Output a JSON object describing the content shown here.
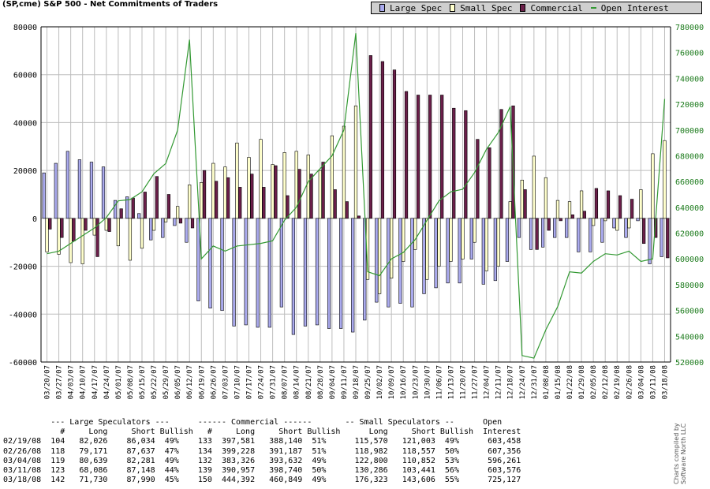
{
  "title": "(SP,cme) S&P 500 - Net Commitments of Traders",
  "legend": [
    {
      "label": "Large Spec",
      "color": "#aaaaee"
    },
    {
      "label": "Small Spec",
      "color": "#ffffcc"
    },
    {
      "label": "Commercial",
      "color": "#6b1f4a"
    },
    {
      "label": "Open Interest",
      "color": "#339933"
    }
  ],
  "chart_data": {
    "type": "bar",
    "title": "(SP,cme) S&P 500 - Net Commitments of Traders",
    "ylim_left": [
      -60000,
      80000
    ],
    "left_ticks": [
      "80000",
      "60000",
      "40000",
      "20000",
      "0",
      "-20000",
      "-40000",
      "-60000"
    ],
    "ylim_right": [
      520000,
      780000
    ],
    "right_ticks": [
      "780000",
      "760000",
      "740000",
      "720000",
      "700000",
      "680000",
      "660000",
      "640000",
      "620000",
      "600000",
      "580000",
      "560000",
      "540000",
      "520000"
    ],
    "x_ticks": [
      "03/20/07",
      "03/27/07",
      "04/03/07",
      "04/10/07",
      "04/17/07",
      "04/24/07",
      "05/01/07",
      "05/08/07",
      "05/15/07",
      "05/22/07",
      "05/29/07",
      "06/05/07",
      "06/12/07",
      "06/19/07",
      "06/26/07",
      "07/03/07",
      "07/10/07",
      "07/17/07",
      "07/24/07",
      "07/31/07",
      "08/07/07",
      "08/14/07",
      "08/21/07",
      "08/28/07",
      "09/04/07",
      "09/11/07",
      "09/18/07",
      "09/25/07",
      "10/02/07",
      "10/09/07",
      "10/16/07",
      "10/23/07",
      "10/30/07",
      "11/06/07",
      "11/13/07",
      "11/20/07",
      "11/27/07",
      "12/04/07",
      "12/11/07",
      "12/18/07",
      "12/24/07",
      "12/31/07",
      "01/08/08",
      "01/15/08",
      "01/22/08",
      "01/29/08",
      "02/05/08",
      "02/12/08",
      "02/19/08",
      "02/26/08",
      "03/04/08",
      "03/11/08",
      "03/18/08"
    ],
    "series": [
      {
        "name": "Large Spec",
        "color": "#aaaaee",
        "values": [
          19000,
          23000,
          28000,
          24500,
          23500,
          21500,
          7500,
          9000,
          2000,
          -9000,
          -8000,
          -3000,
          -10000,
          -34500,
          -37500,
          -38500,
          -45000,
          -44500,
          -45500,
          -45500,
          -37000,
          -48500,
          -45000,
          -44500,
          -46000,
          -46000,
          -47500,
          -42500,
          -35000,
          -37000,
          -35500,
          -37000,
          -31500,
          -29000,
          -27000,
          -27000,
          -17000,
          -27500,
          -26000,
          -18000,
          -8000,
          -13000,
          -12000,
          -8000,
          -8000,
          -14000,
          -14000,
          -10000,
          -4000,
          -8000,
          -1000,
          -19000,
          -16000
        ]
      },
      {
        "name": "Small Spec",
        "color": "#ffffcc",
        "values": [
          -14000,
          -15000,
          -18500,
          -19000,
          -7000,
          -5000,
          -11500,
          -17500,
          -12500,
          -5000,
          -1500,
          5000,
          14000,
          15000,
          23000,
          21500,
          31500,
          25500,
          33000,
          22500,
          27500,
          28000,
          26500,
          20000,
          34500,
          38500,
          47000,
          -25500,
          -31500,
          -25000,
          -18000,
          -13000,
          -25500,
          -20000,
          -18000,
          -17000,
          -10000,
          -22000,
          -20000,
          7000,
          16000,
          26000,
          17000,
          7500,
          7000,
          11500,
          -3000,
          -1000,
          -5000,
          -4000,
          12000,
          27000,
          32500
        ]
      },
      {
        "name": "Commercial",
        "color": "#6b1f4a",
        "values": [
          -4500,
          -8000,
          -9500,
          -5000,
          -16000,
          -5500,
          4000,
          8500,
          11000,
          17500,
          10000,
          -2000,
          -4000,
          20000,
          15500,
          17000,
          13000,
          18500,
          13000,
          22000,
          9500,
          20500,
          18500,
          23500,
          12000,
          7000,
          1000,
          68000,
          65500,
          62000,
          53000,
          51500,
          51500,
          51500,
          46000,
          45000,
          33000,
          29500,
          45500,
          47000,
          12000,
          -13000,
          -5000,
          -1000,
          1500,
          3000,
          12500,
          11500,
          9500,
          8000,
          -10500,
          -8000,
          -16500
        ]
      },
      {
        "name": "Open Interest",
        "color": "#339933",
        "values": [
          604000,
          606000,
          612000,
          618000,
          624000,
          632000,
          645000,
          646000,
          652000,
          666000,
          674000,
          700000,
          770000,
          600000,
          610000,
          606000,
          610000,
          611000,
          612000,
          614000,
          630000,
          640000,
          660000,
          670000,
          680000,
          700000,
          775000,
          590000,
          587000,
          600000,
          605000,
          615000,
          630000,
          645000,
          652000,
          654000,
          667000,
          685000,
          698000,
          718000,
          525000,
          523000,
          545000,
          563000,
          590000,
          589000,
          598000,
          604000,
          603000,
          606000,
          598000,
          600000,
          724000
        ]
      }
    ]
  },
  "table": {
    "header1": "--- Large Speculators ---",
    "header2": "------ Commercial ------",
    "header3": "-- Small Speculators --",
    "header4": "Open",
    "col_hash1": "#",
    "col_long1": "Long",
    "col_short1": "Short",
    "col_bull1": "Bullish",
    "col_hash2": "#",
    "col_long2": "Long",
    "col_short2": "Short",
    "col_bull2": "Bullish",
    "col_long3": "Long",
    "col_short3": "Short",
    "col_bull3": "Bullish",
    "col_oi": "Interest",
    "rows": [
      {
        "date": "02/19/08",
        "n1": "104",
        "l1": "82,026",
        "s1": "86,034",
        "b1": "49%",
        "n2": "133",
        "l2": "397,581",
        "s2": "388,140",
        "b2": "51%",
        "l3": "115,570",
        "s3": "121,003",
        "b3": "49%",
        "oi": "603,458"
      },
      {
        "date": "02/26/08",
        "n1": "118",
        "l1": "79,171",
        "s1": "87,637",
        "b1": "47%",
        "n2": "134",
        "l2": "399,228",
        "s2": "391,187",
        "b2": "51%",
        "l3": "118,982",
        "s3": "118,557",
        "b3": "50%",
        "oi": "607,356"
      },
      {
        "date": "03/04/08",
        "n1": "119",
        "l1": "80,639",
        "s1": "82,281",
        "b1": "49%",
        "n2": "132",
        "l2": "383,326",
        "s2": "393,632",
        "b2": "49%",
        "l3": "122,800",
        "s3": "110,852",
        "b3": "53%",
        "oi": "596,261"
      },
      {
        "date": "03/11/08",
        "n1": "123",
        "l1": "68,086",
        "s1": "87,148",
        "b1": "44%",
        "n2": "139",
        "l2": "390,957",
        "s2": "398,740",
        "b2": "50%",
        "l3": "130,286",
        "s3": "103,441",
        "b3": "56%",
        "oi": "603,576"
      },
      {
        "date": "03/18/08",
        "n1": "142",
        "l1": "71,730",
        "s1": "87,990",
        "b1": "45%",
        "n2": "150",
        "l2": "444,392",
        "s2": "460,849",
        "b2": "49%",
        "l3": "176,323",
        "s3": "143,606",
        "b3": "55%",
        "oi": "725,127"
      }
    ]
  },
  "credit_line1": "Charts compiled by",
  "credit_line2": "Software North LLC"
}
